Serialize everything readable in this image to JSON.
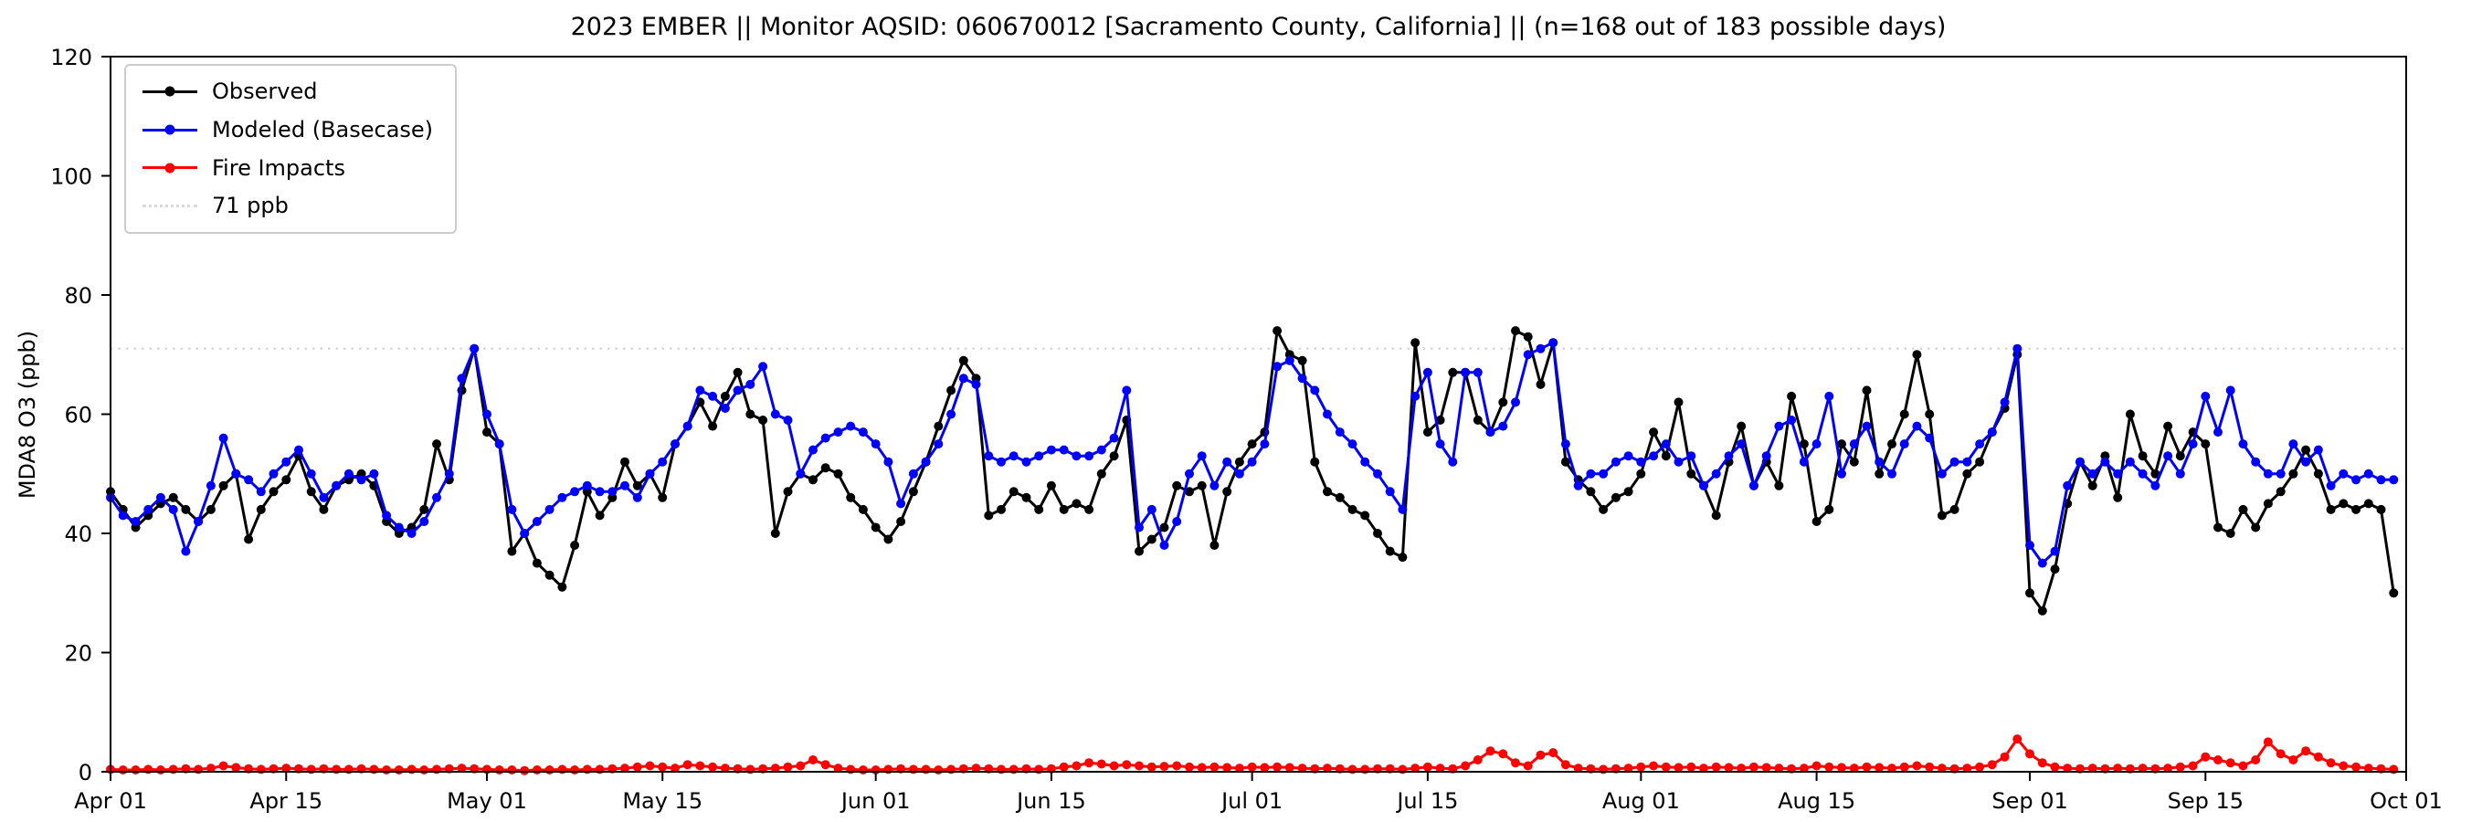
{
  "page": {
    "background": "#ffffff"
  },
  "chart_data": {
    "type": "line",
    "title": "2023 EMBER || Monitor AQSID: 060670012 [Sacramento County, California] || (n=168 out of 183 possible days)",
    "xlabel": "",
    "ylabel": "MDA8 O3 (ppb)",
    "ylim": [
      0,
      120
    ],
    "y_ticks": [
      0,
      20,
      40,
      60,
      80,
      100,
      120
    ],
    "x_domain_days": [
      0,
      183
    ],
    "x_ticks": [
      {
        "label": "Apr 01",
        "day": 0
      },
      {
        "label": "Apr 15",
        "day": 14
      },
      {
        "label": "May 01",
        "day": 30
      },
      {
        "label": "May 15",
        "day": 44
      },
      {
        "label": "Jun 01",
        "day": 61
      },
      {
        "label": "Jun 15",
        "day": 75
      },
      {
        "label": "Jul 01",
        "day": 91
      },
      {
        "label": "Jul 15",
        "day": 105
      },
      {
        "label": "Aug 01",
        "day": 122
      },
      {
        "label": "Aug 15",
        "day": 136
      },
      {
        "label": "Sep 01",
        "day": 153
      },
      {
        "label": "Sep 15",
        "day": 167
      },
      {
        "label": "Oct 01",
        "day": 183
      }
    ],
    "grid": false,
    "legend_position": "upper-left",
    "threshold": {
      "value": 71,
      "label": "71 ppb",
      "color": "#d9d9d9",
      "style": "dotted"
    },
    "series": [
      {
        "name": "Observed",
        "color": "#000000",
        "marker": "circle",
        "values": [
          47,
          44,
          41,
          43,
          45,
          46,
          44,
          42,
          44,
          48,
          50,
          39,
          44,
          47,
          49,
          53,
          47,
          44,
          48,
          49,
          50,
          48,
          42,
          40,
          41,
          44,
          55,
          49,
          64,
          71,
          57,
          55,
          37,
          40,
          35,
          33,
          31,
          38,
          47,
          43,
          46,
          52,
          48,
          50,
          46,
          55,
          58,
          62,
          58,
          63,
          67,
          60,
          59,
          40,
          47,
          50,
          49,
          51,
          50,
          46,
          44,
          41,
          39,
          42,
          47,
          52,
          58,
          64,
          69,
          66,
          43,
          44,
          47,
          46,
          44,
          48,
          44,
          45,
          44,
          50,
          53,
          59,
          37,
          39,
          41,
          48,
          47,
          48,
          38,
          47,
          52,
          55,
          57,
          74,
          70,
          69,
          52,
          47,
          46,
          44,
          43,
          40,
          37,
          36,
          72,
          57,
          59,
          67,
          67,
          59,
          57,
          62,
          74,
          73,
          65,
          72,
          52,
          49,
          47,
          44,
          46,
          47,
          50,
          57,
          53,
          62,
          50,
          48,
          43,
          52,
          58,
          48,
          52,
          48,
          63,
          55,
          42,
          44,
          55,
          52,
          64,
          50,
          55,
          60,
          70,
          60,
          43,
          44,
          50,
          52,
          57,
          61,
          70,
          30,
          27,
          34,
          45,
          52,
          48,
          53,
          46,
          60,
          53,
          50,
          58,
          53,
          57,
          55,
          41,
          40,
          44,
          41,
          45,
          47,
          50,
          54,
          50,
          44,
          45,
          44,
          45,
          44,
          30
        ]
      },
      {
        "name": "Modeled (Basecase)",
        "color": "#0000ff",
        "marker": "circle",
        "values": [
          46,
          43,
          42,
          44,
          46,
          44,
          37,
          42,
          48,
          56,
          50,
          49,
          47,
          50,
          52,
          54,
          50,
          46,
          48,
          50,
          49,
          50,
          43,
          41,
          40,
          42,
          46,
          50,
          66,
          71,
          60,
          55,
          44,
          40,
          42,
          44,
          46,
          47,
          48,
          47,
          47,
          48,
          46,
          50,
          52,
          55,
          58,
          64,
          63,
          61,
          64,
          65,
          68,
          60,
          59,
          50,
          54,
          56,
          57,
          58,
          57,
          55,
          52,
          45,
          50,
          52,
          55,
          60,
          66,
          65,
          53,
          52,
          53,
          52,
          53,
          54,
          54,
          53,
          53,
          54,
          56,
          64,
          41,
          44,
          38,
          42,
          50,
          53,
          48,
          52,
          50,
          52,
          55,
          68,
          69,
          66,
          64,
          60,
          57,
          55,
          52,
          50,
          47,
          44,
          63,
          67,
          55,
          52,
          67,
          67,
          57,
          58,
          62,
          70,
          71,
          72,
          55,
          48,
          50,
          50,
          52,
          53,
          52,
          53,
          55,
          52,
          53,
          48,
          50,
          53,
          55,
          48,
          53,
          58,
          59,
          52,
          55,
          63,
          50,
          55,
          58,
          52,
          50,
          55,
          58,
          56,
          50,
          52,
          52,
          55,
          57,
          62,
          71,
          38,
          35,
          37,
          48,
          52,
          50,
          52,
          50,
          52,
          50,
          48,
          53,
          50,
          55,
          63,
          57,
          64,
          55,
          52,
          50,
          50,
          55,
          52,
          54,
          48,
          50,
          49,
          50,
          49,
          49
        ]
      },
      {
        "name": "Fire Impacts",
        "color": "#ff0000",
        "marker": "circle",
        "values": [
          0.4,
          0.3,
          0.3,
          0.4,
          0.3,
          0.4,
          0.5,
          0.4,
          0.6,
          1.0,
          0.7,
          0.5,
          0.4,
          0.5,
          0.6,
          0.5,
          0.4,
          0.5,
          0.4,
          0.4,
          0.5,
          0.4,
          0.3,
          0.3,
          0.4,
          0.3,
          0.4,
          0.5,
          0.6,
          0.5,
          0.4,
          0.3,
          0.3,
          0.2,
          0.3,
          0.3,
          0.4,
          0.3,
          0.4,
          0.4,
          0.5,
          0.6,
          0.8,
          1.0,
          0.8,
          0.6,
          1.2,
          1.0,
          0.8,
          0.6,
          0.5,
          0.4,
          0.5,
          0.6,
          0.8,
          1.0,
          2.0,
          1.2,
          0.6,
          0.4,
          0.3,
          0.3,
          0.4,
          0.5,
          0.4,
          0.4,
          0.3,
          0.4,
          0.5,
          0.6,
          0.5,
          0.4,
          0.4,
          0.5,
          0.4,
          0.5,
          0.8,
          1.0,
          1.5,
          1.3,
          1.0,
          1.2,
          1.0,
          0.8,
          0.9,
          1.0,
          0.8,
          0.7,
          0.8,
          0.7,
          0.6,
          0.8,
          0.7,
          0.8,
          0.7,
          0.6,
          0.5,
          0.6,
          0.5,
          0.4,
          0.4,
          0.5,
          0.5,
          0.4,
          0.6,
          0.8,
          0.6,
          0.5,
          1.0,
          2.0,
          3.5,
          3.0,
          1.5,
          1.0,
          2.8,
          3.2,
          1.2,
          0.6,
          0.5,
          0.4,
          0.5,
          0.6,
          0.8,
          1.0,
          0.8,
          0.7,
          0.8,
          0.6,
          0.8,
          0.7,
          0.6,
          0.8,
          0.7,
          0.6,
          0.5,
          0.6,
          1.0,
          0.8,
          0.7,
          0.6,
          0.8,
          0.7,
          0.6,
          0.8,
          1.0,
          0.8,
          0.6,
          0.5,
          0.6,
          0.8,
          1.2,
          2.5,
          5.5,
          3.0,
          1.5,
          0.8,
          0.6,
          0.5,
          0.6,
          0.5,
          0.6,
          0.5,
          0.6,
          0.5,
          0.6,
          0.8,
          1.0,
          2.5,
          2.0,
          1.5,
          1.0,
          2.0,
          5.0,
          3.0,
          2.0,
          3.5,
          2.5,
          1.5,
          1.0,
          0.8,
          0.6,
          0.5,
          0.4
        ]
      }
    ]
  }
}
